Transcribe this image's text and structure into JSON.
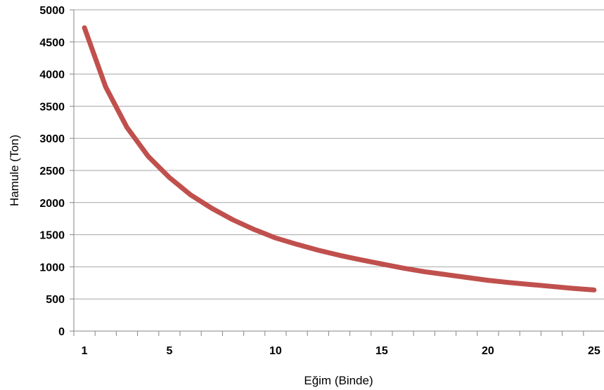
{
  "chart_data": {
    "type": "line",
    "title": "",
    "xlabel": "Eğim (Binde)",
    "ylabel": "Hamule (Ton)",
    "xlim": [
      0.5,
      25.5
    ],
    "ylim": [
      0,
      5000
    ],
    "x_ticks": [
      1,
      5,
      10,
      15,
      20,
      25
    ],
    "y_ticks": [
      0,
      500,
      1000,
      1500,
      2000,
      2500,
      3000,
      3500,
      4000,
      4500,
      5000
    ],
    "grid": "horizontal",
    "legend": "none",
    "series": [
      {
        "color": "#c0504d",
        "x": [
          1,
          2,
          3,
          4,
          5,
          6,
          7,
          8,
          9,
          10,
          11,
          12,
          13,
          14,
          15,
          16,
          17,
          18,
          19,
          20,
          21,
          22,
          23,
          24,
          25
        ],
        "values": [
          4720,
          3800,
          3170,
          2720,
          2390,
          2120,
          1910,
          1730,
          1580,
          1450,
          1350,
          1260,
          1180,
          1110,
          1045,
          980,
          925,
          880,
          835,
          790,
          755,
          725,
          695,
          665,
          640
        ]
      }
    ]
  }
}
